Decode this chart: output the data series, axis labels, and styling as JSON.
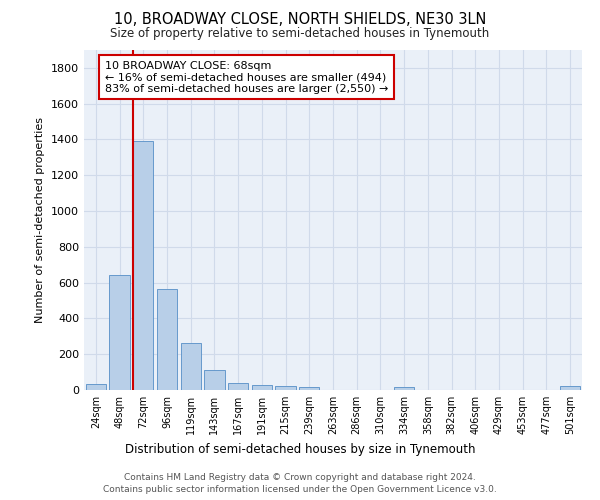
{
  "title1": "10, BROADWAY CLOSE, NORTH SHIELDS, NE30 3LN",
  "title2": "Size of property relative to semi-detached houses in Tynemouth",
  "xlabel": "Distribution of semi-detached houses by size in Tynemouth",
  "ylabel": "Number of semi-detached properties",
  "categories": [
    "24sqm",
    "48sqm",
    "72sqm",
    "96sqm",
    "119sqm",
    "143sqm",
    "167sqm",
    "191sqm",
    "215sqm",
    "239sqm",
    "263sqm",
    "286sqm",
    "310sqm",
    "334sqm",
    "358sqm",
    "382sqm",
    "406sqm",
    "429sqm",
    "453sqm",
    "477sqm",
    "501sqm"
  ],
  "values": [
    35,
    645,
    1390,
    565,
    265,
    110,
    40,
    30,
    20,
    15,
    0,
    0,
    0,
    15,
    0,
    0,
    0,
    0,
    0,
    0,
    20
  ],
  "bar_color": "#b8cfe8",
  "bar_edge_color": "#6699cc",
  "redline_index": 2,
  "annotation_title": "10 BROADWAY CLOSE: 68sqm",
  "annotation_line1": "← 16% of semi-detached houses are smaller (494)",
  "annotation_line2": "83% of semi-detached houses are larger (2,550) →",
  "annotation_box_color": "#ffffff",
  "annotation_box_edge": "#cc0000",
  "redline_color": "#cc0000",
  "ylim": [
    0,
    1900
  ],
  "yticks": [
    0,
    200,
    400,
    600,
    800,
    1000,
    1200,
    1400,
    1600,
    1800
  ],
  "footnote1": "Contains HM Land Registry data © Crown copyright and database right 2024.",
  "footnote2": "Contains public sector information licensed under the Open Government Licence v3.0.",
  "grid_color": "#d0daea",
  "bg_color": "#eaf0f8"
}
